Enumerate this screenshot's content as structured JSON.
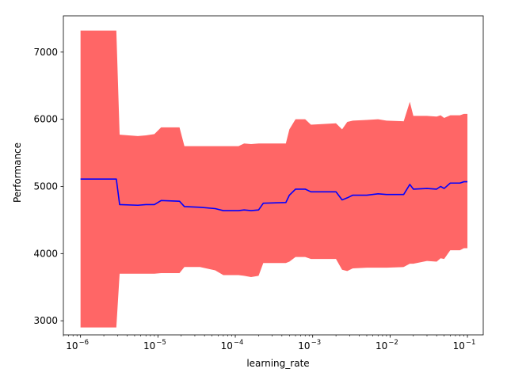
{
  "chart_data": {
    "type": "line",
    "xscale": "log",
    "xlabel": "learning_rate",
    "ylabel": "Performance",
    "xlim": [
      6e-07,
      0.16
    ],
    "ylim": [
      2790,
      7540
    ],
    "grid": false,
    "legend": "none",
    "x_ticks": [
      {
        "value": 1e-06,
        "base": "10",
        "exp": "−6"
      },
      {
        "value": 1e-05,
        "base": "10",
        "exp": "−5"
      },
      {
        "value": 0.0001,
        "base": "10",
        "exp": "−4"
      },
      {
        "value": 0.001,
        "base": "10",
        "exp": "−3"
      },
      {
        "value": 0.01,
        "base": "10",
        "exp": "−2"
      },
      {
        "value": 0.1,
        "base": "10",
        "exp": "−1"
      }
    ],
    "y_ticks": [
      {
        "value": 3000,
        "label": "3000"
      },
      {
        "value": 4000,
        "label": "4000"
      },
      {
        "value": 5000,
        "label": "5000"
      },
      {
        "value": 6000,
        "label": "6000"
      },
      {
        "value": 7000,
        "label": "7000"
      }
    ],
    "series": [
      {
        "color": "#0000ff",
        "band_color": "#ff6666",
        "x": [
          1e-06,
          2.9e-06,
          3.2e-06,
          5.5e-06,
          7e-06,
          9e-06,
          1.1e-05,
          1.9e-05,
          2.2e-05,
          3.5e-05,
          5.5e-05,
          7e-05,
          0.00011,
          0.00013,
          0.00016,
          0.0002,
          0.00023,
          0.00045,
          0.0005,
          0.0006,
          0.0008,
          0.00095,
          0.002,
          0.0024,
          0.0028,
          0.0033,
          0.005,
          0.007,
          0.009,
          0.015,
          0.018,
          0.02,
          0.03,
          0.04,
          0.045,
          0.05,
          0.06,
          0.08,
          0.09,
          0.1
        ],
        "mean": [
          5110,
          5110,
          4730,
          4720,
          4730,
          4730,
          4790,
          4780,
          4700,
          4690,
          4670,
          4640,
          4640,
          4650,
          4640,
          4650,
          4750,
          4760,
          4870,
          4960,
          4960,
          4920,
          4920,
          4800,
          4830,
          4870,
          4870,
          4890,
          4880,
          4880,
          5030,
          4960,
          4970,
          4960,
          5000,
          4970,
          5050,
          5050,
          5070,
          5070
        ],
        "upper": [
          7320,
          7320,
          5770,
          5750,
          5760,
          5780,
          5880,
          5880,
          5600,
          5600,
          5600,
          5600,
          5600,
          5640,
          5630,
          5640,
          5640,
          5640,
          5850,
          6000,
          6000,
          5920,
          5940,
          5850,
          5960,
          5980,
          5990,
          6000,
          5980,
          5970,
          6260,
          6050,
          6050,
          6040,
          6060,
          6020,
          6060,
          6060,
          6080,
          6080
        ],
        "lower": [
          2900,
          2900,
          3700,
          3700,
          3700,
          3700,
          3710,
          3710,
          3800,
          3800,
          3750,
          3680,
          3680,
          3670,
          3650,
          3670,
          3860,
          3860,
          3880,
          3950,
          3950,
          3920,
          3920,
          3760,
          3740,
          3780,
          3790,
          3790,
          3790,
          3800,
          3850,
          3850,
          3890,
          3880,
          3930,
          3920,
          4050,
          4050,
          4080,
          4080
        ]
      }
    ]
  }
}
